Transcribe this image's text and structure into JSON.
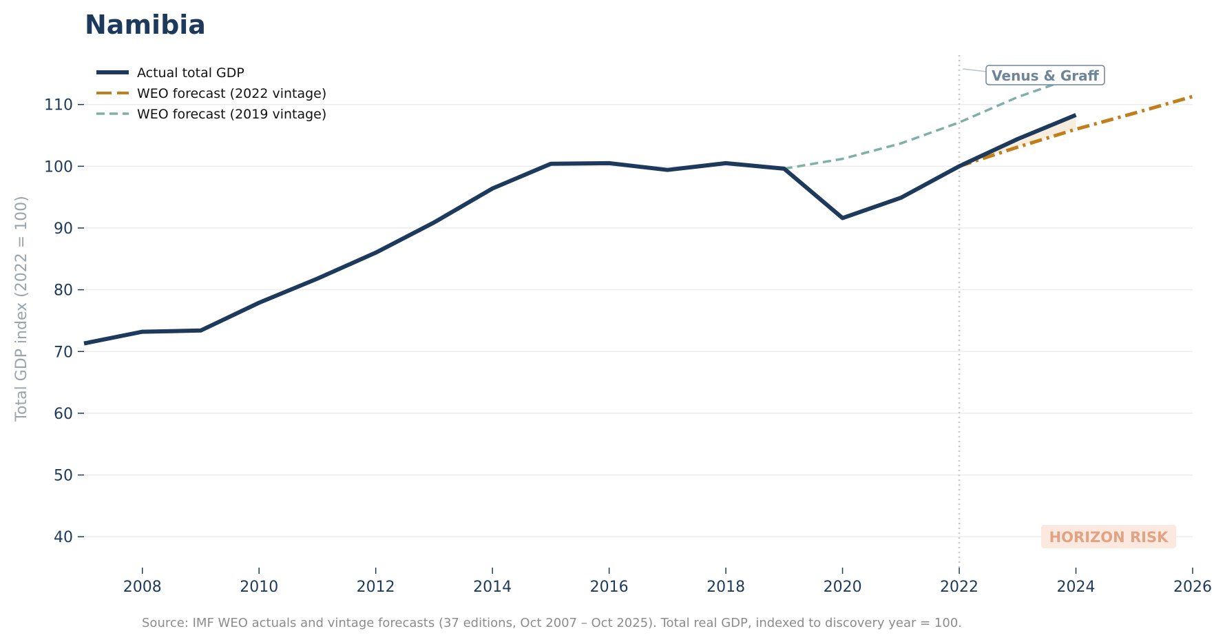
{
  "chart_data": {
    "type": "line",
    "title": "Namibia",
    "xlabel": "",
    "ylabel": "Total GDP index (2022 = 100)",
    "xlim": [
      2007,
      2026
    ],
    "ylim": [
      35,
      118
    ],
    "xticks": [
      2008,
      2010,
      2012,
      2014,
      2016,
      2018,
      2020,
      2022,
      2024,
      2026
    ],
    "yticks": [
      40,
      50,
      60,
      70,
      80,
      90,
      100,
      110
    ],
    "grid": "horizontal",
    "legend_position": "top-left",
    "series": [
      {
        "name": "Actual total GDP",
        "color": "#1d3a5c",
        "style": "solid",
        "x": [
          2007,
          2008,
          2009,
          2010,
          2011,
          2012,
          2013,
          2014,
          2015,
          2016,
          2017,
          2018,
          2019,
          2020,
          2021,
          2022,
          2023,
          2024
        ],
        "y": [
          71.3,
          73.2,
          73.4,
          77.9,
          81.8,
          86.0,
          90.9,
          96.4,
          100.4,
          100.5,
          99.4,
          100.5,
          99.6,
          91.6,
          94.9,
          100.0,
          104.4,
          108.3
        ]
      },
      {
        "name": "WEO forecast (2022 vintage)",
        "color": "#c17f1b",
        "style": "dashdot",
        "x": [
          2022,
          2023,
          2024,
          2025,
          2026
        ],
        "y": [
          100.0,
          103.1,
          106.0,
          108.6,
          111.3
        ]
      },
      {
        "name": "WEO forecast (2019 vintage)",
        "color": "#7fb0a8",
        "style": "dashed",
        "x": [
          2019,
          2020,
          2021,
          2022,
          2023,
          2024
        ],
        "y": [
          99.6,
          101.2,
          103.7,
          107.1,
          111.2,
          114.5
        ]
      }
    ],
    "annotations": [
      {
        "text": "Venus & Graff",
        "x": 2022
      },
      {
        "text": "HORIZON RISK"
      }
    ],
    "vline_x": 2022,
    "source": "Source: IMF WEO actuals and vintage forecasts (37 editions, Oct 2007 – Oct 2025). Total real GDP, indexed to discovery year = 100."
  }
}
